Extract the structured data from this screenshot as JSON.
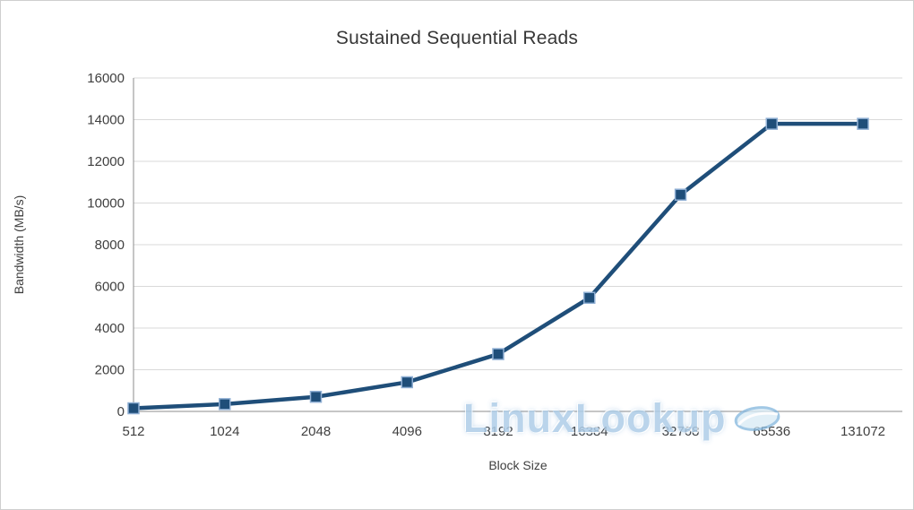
{
  "chart_data": {
    "type": "line",
    "title": "Sustained Sequential Reads",
    "xlabel": "Block Size",
    "ylabel": "Bandwidth (MB/s)",
    "categories": [
      "512",
      "1024",
      "2048",
      "4096",
      "8192",
      "16384",
      "32768",
      "65536",
      "131072"
    ],
    "series": [
      {
        "name": "Sustained Sequential Reads",
        "values": [
          150,
          350,
          700,
          1400,
          2750,
          5450,
          10400,
          13800,
          13800
        ]
      }
    ],
    "ylim": [
      0,
      16000
    ],
    "ytick_step": 2000,
    "grid": "horizontal",
    "legend": "none",
    "colors": {
      "line": "#1F4E79",
      "marker_fill": "#1F4E79",
      "marker_border": "#8FAFD4",
      "grid": "#D9D9D9",
      "axis": "#8C8C8C",
      "text": "#3F3F3F"
    }
  },
  "watermark": {
    "text": "LinuxLookup",
    "color": "#AECDE8"
  }
}
